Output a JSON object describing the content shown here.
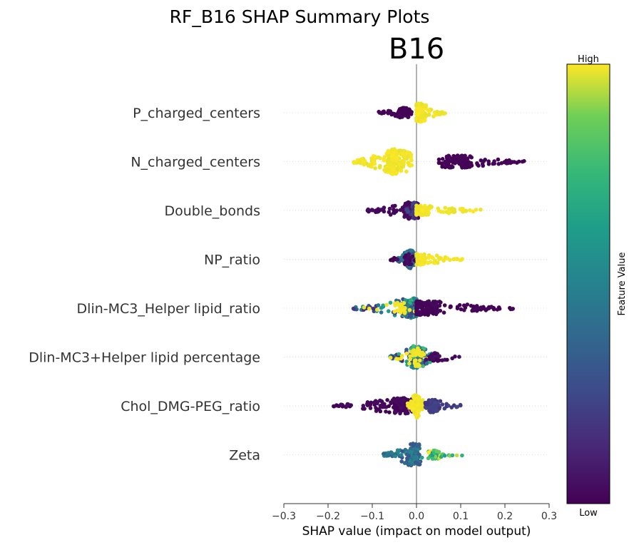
{
  "chart_data": {
    "type": "scatter",
    "title": "RF_B16 SHAP Summary Plots",
    "subtitle": "B16",
    "xlabel": "SHAP value (impact on model output)",
    "ylabel": "",
    "xlim": [
      -0.3,
      0.3
    ],
    "x_ticks": [
      -0.3,
      -0.2,
      -0.1,
      0.0,
      0.1,
      0.2,
      0.3
    ],
    "x_tick_labels": [
      "−0.3",
      "−0.2",
      "−0.1",
      "0.0",
      "0.1",
      "0.2",
      "0.3"
    ],
    "colorbar": {
      "label": "Feature Value",
      "high_label": "High",
      "low_label": "Low",
      "colormap": "viridis",
      "range": [
        0,
        1
      ]
    },
    "features": [
      {
        "name": "P_charged_centers",
        "clusters": [
          {
            "x_min": -0.09,
            "x_max": -0.005,
            "peak": -0.03,
            "count": 85,
            "width": 12,
            "v_min": 0.0,
            "v_max": 0.02
          },
          {
            "x_min": 0.0,
            "x_max": 0.065,
            "peak": 0.008,
            "count": 150,
            "width": 24,
            "v_min": 0.98,
            "v_max": 1.0
          }
        ]
      },
      {
        "name": "N_charged_centers",
        "clusters": [
          {
            "x_min": -0.145,
            "x_max": -0.01,
            "peak": -0.05,
            "count": 210,
            "width": 34,
            "v_min": 0.98,
            "v_max": 1.0
          },
          {
            "x_min": 0.05,
            "x_max": 0.245,
            "peak": 0.09,
            "count": 140,
            "width": 16,
            "v_min": 0.0,
            "v_max": 0.02
          }
        ]
      },
      {
        "name": "Double_bonds",
        "clusters": [
          {
            "x_min": -0.115,
            "x_max": 0.005,
            "peak": -0.01,
            "count": 150,
            "width": 22,
            "v_min": 0.0,
            "v_max": 0.05
          },
          {
            "x_min": -0.03,
            "x_max": 0.005,
            "peak": -0.005,
            "count": 45,
            "width": 20,
            "v_min": 0.1,
            "v_max": 0.3
          },
          {
            "x_min": 0.0,
            "x_max": 0.145,
            "peak": 0.01,
            "count": 100,
            "width": 12,
            "v_min": 0.98,
            "v_max": 1.0
          }
        ]
      },
      {
        "name": "NP_ratio",
        "clusters": [
          {
            "x_min": -0.05,
            "x_max": 0.0,
            "peak": -0.015,
            "count": 110,
            "width": 24,
            "v_min": 0.25,
            "v_max": 0.5
          },
          {
            "x_min": -0.06,
            "x_max": 0.0,
            "peak": -0.02,
            "count": 30,
            "width": 14,
            "v_min": 0.0,
            "v_max": 0.05
          },
          {
            "x_min": 0.0,
            "x_max": 0.105,
            "peak": 0.01,
            "count": 90,
            "width": 14,
            "v_min": 0.98,
            "v_max": 1.0
          }
        ]
      },
      {
        "name": "Dlin-MC3_Helper lipid_ratio",
        "clusters": [
          {
            "x_min": -0.145,
            "x_max": 0.0,
            "peak": -0.015,
            "count": 140,
            "width": 26,
            "v_min": 0.15,
            "v_max": 0.75
          },
          {
            "x_min": -0.12,
            "x_max": 0.02,
            "peak": -0.03,
            "count": 30,
            "width": 14,
            "v_min": 0.98,
            "v_max": 1.0
          },
          {
            "x_min": 0.0,
            "x_max": 0.22,
            "peak": 0.02,
            "count": 160,
            "width": 18,
            "v_min": 0.0,
            "v_max": 0.03
          }
        ]
      },
      {
        "name": "Dlin-MC3+Helper lipid percentage",
        "clusters": [
          {
            "x_min": -0.06,
            "x_max": 0.045,
            "peak": 0.0,
            "count": 170,
            "width": 30,
            "v_min": 0.1,
            "v_max": 0.8
          },
          {
            "x_min": -0.06,
            "x_max": 0.03,
            "peak": 0.0,
            "count": 45,
            "width": 24,
            "v_min": 0.98,
            "v_max": 1.0
          },
          {
            "x_min": 0.02,
            "x_max": 0.115,
            "peak": 0.04,
            "count": 40,
            "width": 10,
            "v_min": 0.0,
            "v_max": 0.05
          }
        ]
      },
      {
        "name": "Chol_DMG-PEG_ratio",
        "clusters": [
          {
            "x_min": -0.19,
            "x_max": -0.005,
            "peak": -0.03,
            "count": 150,
            "width": 20,
            "v_min": 0.0,
            "v_max": 0.04
          },
          {
            "x_min": -0.02,
            "x_max": 0.03,
            "peak": 0.0,
            "count": 90,
            "width": 32,
            "v_min": 0.98,
            "v_max": 1.0
          },
          {
            "x_min": 0.02,
            "x_max": 0.105,
            "peak": 0.035,
            "count": 100,
            "width": 16,
            "v_min": 0.15,
            "v_max": 0.25
          }
        ]
      },
      {
        "name": "Zeta",
        "clusters": [
          {
            "x_min": -0.075,
            "x_max": 0.01,
            "peak": -0.005,
            "count": 190,
            "width": 30,
            "v_min": 0.3,
            "v_max": 0.55
          },
          {
            "x_min": 0.01,
            "x_max": 0.11,
            "peak": 0.04,
            "count": 50,
            "width": 10,
            "v_min": 0.6,
            "v_max": 1.0
          }
        ]
      }
    ]
  }
}
